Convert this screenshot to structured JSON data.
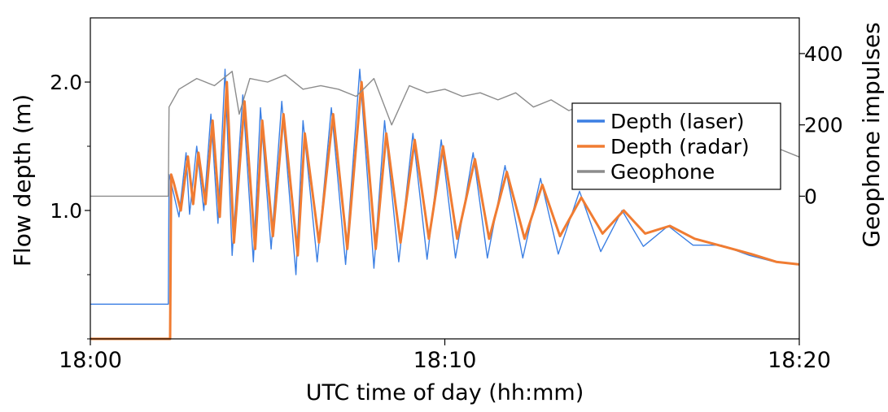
{
  "chart_data": {
    "type": "line",
    "title": "",
    "xlabel": "UTC time of day (hh:mm)",
    "ylabel": "Flow depth (m)",
    "y2label": "Geophone impulses",
    "x_unit": "minutes",
    "xlim": [
      0,
      20
    ],
    "ylim": [
      0,
      2.5
    ],
    "y2lim": [
      -400,
      500
    ],
    "x_ticks": [
      {
        "value": 0,
        "label": "18:00"
      },
      {
        "value": 10,
        "label": "18:10"
      },
      {
        "value": 20,
        "label": "18:20"
      }
    ],
    "y_ticks": [
      {
        "value": 1.0,
        "label": "1.0"
      },
      {
        "value": 2.0,
        "label": "2.0"
      }
    ],
    "y2_ticks": [
      {
        "value": 0,
        "label": "0"
      },
      {
        "value": 200,
        "label": "200"
      },
      {
        "value": 400,
        "label": "400"
      }
    ],
    "grid": false,
    "legend": {
      "position": "right",
      "entries": [
        "Depth (laser)",
        "Depth (radar)",
        "Geophone"
      ]
    },
    "series": [
      {
        "name": "Depth (laser)",
        "axis": "left",
        "color": "#3b7fe3",
        "x": [
          0,
          2.2,
          2.22,
          2.25,
          2.5,
          2.7,
          2.8,
          3.0,
          3.2,
          3.4,
          3.6,
          3.8,
          4.0,
          4.3,
          4.6,
          4.8,
          5.1,
          5.4,
          5.8,
          6.0,
          6.4,
          6.8,
          7.2,
          7.6,
          8.0,
          8.3,
          8.7,
          9.1,
          9.5,
          9.9,
          10.3,
          10.8,
          11.2,
          11.7,
          12.2,
          12.7,
          13.2,
          13.8,
          14.4,
          15.0,
          15.6,
          16.3,
          17.0,
          17.8,
          18.6,
          19.3,
          20.0
        ],
        "values": [
          0.27,
          0.27,
          1.28,
          1.25,
          0.95,
          1.45,
          0.97,
          1.5,
          1.0,
          1.75,
          0.9,
          2.1,
          0.65,
          1.9,
          0.6,
          1.8,
          0.7,
          1.85,
          0.5,
          1.7,
          0.6,
          1.8,
          0.58,
          2.1,
          0.55,
          1.7,
          0.6,
          1.6,
          0.62,
          1.55,
          0.63,
          1.45,
          0.63,
          1.35,
          0.63,
          1.25,
          0.66,
          1.15,
          0.68,
          1.0,
          0.72,
          0.88,
          0.73,
          0.73,
          0.65,
          0.6,
          0.58
        ]
      },
      {
        "name": "Depth (radar)",
        "axis": "left",
        "color": "#f07c32",
        "x": [
          0,
          2.25,
          2.28,
          2.35,
          2.55,
          2.75,
          2.9,
          3.05,
          3.25,
          3.45,
          3.65,
          3.85,
          4.05,
          4.35,
          4.65,
          4.85,
          5.15,
          5.45,
          5.85,
          6.05,
          6.45,
          6.85,
          7.25,
          7.65,
          8.05,
          8.35,
          8.75,
          9.15,
          9.55,
          9.95,
          10.35,
          10.85,
          11.25,
          11.75,
          12.25,
          12.75,
          13.25,
          13.85,
          14.45,
          15.05,
          15.65,
          16.35,
          17.05,
          17.85,
          18.65,
          19.35,
          20.0
        ],
        "values": [
          0.0,
          0.0,
          1.28,
          1.22,
          1.0,
          1.42,
          1.05,
          1.45,
          1.05,
          1.7,
          0.95,
          2.0,
          0.75,
          1.85,
          0.7,
          1.7,
          0.8,
          1.75,
          0.65,
          1.6,
          0.75,
          1.75,
          0.7,
          2.0,
          0.7,
          1.6,
          0.75,
          1.55,
          0.78,
          1.5,
          0.78,
          1.4,
          0.78,
          1.3,
          0.78,
          1.2,
          0.8,
          1.1,
          0.82,
          1.0,
          0.82,
          0.88,
          0.78,
          0.72,
          0.66,
          0.6,
          0.58
        ]
      },
      {
        "name": "Geophone",
        "axis": "right",
        "color": "#8c8c8c",
        "x": [
          0,
          2.2,
          2.22,
          2.5,
          3.0,
          3.5,
          4.0,
          4.2,
          4.5,
          5.0,
          5.5,
          6.0,
          6.5,
          7.0,
          7.5,
          8.0,
          8.5,
          9.0,
          9.5,
          10.0,
          10.5,
          11.0,
          11.5,
          12.0,
          12.5,
          13.0,
          13.5,
          14.0,
          14.5,
          15.0,
          15.5,
          16.0,
          16.5,
          17.0,
          17.5,
          18.0,
          18.5,
          19.0,
          19.5,
          20.0
        ],
        "values": [
          0,
          0,
          250,
          300,
          330,
          310,
          350,
          230,
          330,
          320,
          340,
          300,
          310,
          300,
          280,
          330,
          200,
          310,
          290,
          300,
          280,
          290,
          270,
          290,
          250,
          270,
          240,
          260,
          230,
          260,
          230,
          210,
          200,
          150,
          180,
          150,
          170,
          140,
          130,
          110
        ]
      }
    ]
  }
}
